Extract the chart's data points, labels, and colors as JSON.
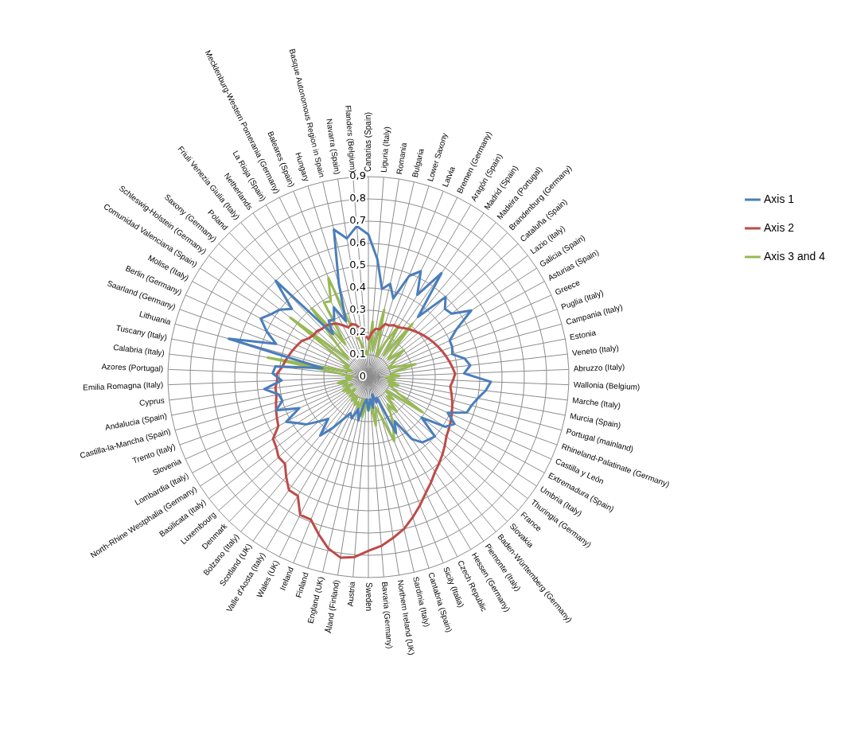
{
  "chart_data": {
    "type": "radar",
    "categories": [
      "Canarias (Spain)",
      "Liguria (Italy)",
      "Romania",
      "Bulgaria",
      "Lower Saxony",
      "Latvia",
      "Bremen (Germany)",
      "Aragón (Spain)",
      "Madrid (Spain)",
      "Madeira (Portugal)",
      "Brandenburg (Germany)",
      "Cataluña (Spain)",
      "Lazio (Italy)",
      "Galicia (Spain)",
      "Asturias (Spain)",
      "Greece",
      "Puglia (Italy)",
      "Campania (Italy)",
      "Estonia",
      "Veneto (Italy)",
      "Abruzzo (Italy)",
      "Wallonia (Belgium)",
      "Marche (Italy)",
      "Murcia (Spain)",
      "Portugal (mainland)",
      "Rhineland-Palatinate (Germany)",
      "Castilla y León",
      "Extremadura (Spain)",
      "Umbria (Italy)",
      "Thuringia (Germany)",
      "France",
      "Slovakia",
      "Baden-Württemberg (Germany)",
      "Piemonte (Italy)",
      "Hessen (Germany)",
      "Czech Republic",
      "Sicily (Italia)",
      "Cantabria (Spain)",
      "Sardinia (Italy)",
      "Northern Ireland (UK)",
      "Bavaria (Germany)",
      "Sweden",
      "Austria",
      "Åland (Finland)",
      "England (UK)",
      "Finland",
      "Ireland",
      "Wales (UK)",
      "Valle d'Aosta (Italy)",
      "Scotland (UK)",
      "Bolzano (Italy)",
      "Denmark",
      "Luxembourg",
      "Basilicata (Italy)",
      "North-Rhine Westphalia (Germany)",
      "Lombardia (Italy)",
      "Slovenia",
      "Trento (Italy)",
      "Castilla-la-Mancha (Spain)",
      "Andalucia (Spain)",
      "Cyprus",
      "Emilia Romagna (Italy)",
      "Azores (Portugal)",
      "Calabria (Italy)",
      "Tuscany (Italy)",
      "Lithuania",
      "Saarland (Germany)",
      "Berlin (Germany)",
      "Molise (Italy)",
      "Comunidad Valenciana (Spain)",
      "Schleswig-Holstein (Germany)",
      "Saxony (Germany)",
      "Poland",
      "Friuli Venezia Giulia (Italy)",
      "Netherlands",
      "La Rioja (Spain)",
      "Mecklenburg-Western Pomerania (Germany)",
      "Baleares (Spain)",
      "Hungary",
      "Basque Autonomous Region in Spain",
      "Navarra (Spain)",
      "Flanders (Belgium)"
    ],
    "series": [
      {
        "name": "Axis 1",
        "color": "#4a7ebb",
        "values": [
          0.64,
          0.53,
          0.4,
          0.43,
          0.37,
          0.49,
          0.53,
          0.43,
          0.57,
          0.35,
          0.5,
          0.46,
          0.47,
          0.55,
          0.45,
          0.4,
          0.4,
          0.39,
          0.44,
          0.46,
          0.43,
          0.55,
          0.53,
          0.5,
          0.48,
          0.47,
          0.39,
          0.44,
          0.41,
          0.3,
          0.4,
          0.39,
          0.38,
          0.34,
          0.23,
          0.28,
          0.1,
          0.12,
          0.08,
          0.14,
          0.1,
          0.15,
          0.1,
          0.12,
          0.2,
          0.15,
          0.2,
          0.18,
          0.22,
          0.28,
          0.34,
          0.26,
          0.3,
          0.35,
          0.38,
          0.42,
          0.34,
          0.44,
          0.4,
          0.41,
          0.47,
          0.39,
          0.43,
          0.42,
          0.21,
          0.65,
          0.44,
          0.5,
          0.55,
          0.52,
          0.5,
          0.46,
          0.6,
          0.25,
          0.31,
          0.3,
          0.35,
          0.27,
          0.44,
          0.68,
          0.63,
          0.68
        ]
      },
      {
        "name": "Axis 2",
        "color": "#be4b48",
        "values": [
          0.17,
          0.2,
          0.22,
          0.22,
          0.25,
          0.25,
          0.26,
          0.26,
          0.27,
          0.28,
          0.29,
          0.3,
          0.31,
          0.32,
          0.33,
          0.34,
          0.35,
          0.36,
          0.37,
          0.38,
          0.39,
          0.38,
          0.37,
          0.38,
          0.39,
          0.4,
          0.41,
          0.42,
          0.43,
          0.44,
          0.46,
          0.48,
          0.5,
          0.52,
          0.55,
          0.58,
          0.62,
          0.66,
          0.7,
          0.73,
          0.76,
          0.78,
          0.81,
          0.82,
          0.79,
          0.74,
          0.69,
          0.69,
          0.62,
          0.62,
          0.58,
          0.54,
          0.54,
          0.52,
          0.51,
          0.46,
          0.45,
          0.44,
          0.43,
          0.42,
          0.42,
          0.41,
          0.41,
          0.39,
          0.38,
          0.37,
          0.36,
          0.35,
          0.34,
          0.32,
          0.31,
          0.31,
          0.3,
          0.3,
          0.29,
          0.28,
          0.26,
          0.24,
          0.25,
          0.24,
          0.22,
          0.19
        ]
      },
      {
        "name": "Axis 3 and 4",
        "color": "#98b954",
        "values": [
          0.12,
          0.25,
          0.12,
          0.31,
          0.15,
          0.1,
          0.18,
          0.27,
          0.12,
          0.31,
          0.15,
          0.12,
          0.2,
          0.14,
          0.12,
          0.1,
          0.14,
          0.22,
          0.12,
          0.1,
          0.14,
          0.08,
          0.12,
          0.09,
          0.14,
          0.1,
          0.12,
          0.15,
          0.29,
          0.1,
          0.15,
          0.12,
          0.2,
          0.15,
          0.2,
          0.25,
          0.31,
          0.18,
          0.14,
          0.22,
          0.12,
          0.15,
          0.12,
          0.18,
          0.1,
          0.16,
          0.12,
          0.14,
          0.1,
          0.13,
          0.1,
          0.12,
          0.08,
          0.12,
          0.1,
          0.13,
          0.08,
          0.12,
          0.1,
          0.14,
          0.08,
          0.1,
          0.07,
          0.12,
          0.46,
          0.1,
          0.08,
          0.12,
          0.1,
          0.15,
          0.44,
          0.12,
          0.2,
          0.4,
          0.18,
          0.39,
          0.38,
          0.48,
          0.2,
          0.17,
          0.12,
          0.1
        ]
      }
    ],
    "ylim": [
      0,
      0.9
    ],
    "yticks": [
      0,
      {
        "value": 0.1,
        "label": "0,1"
      },
      {
        "value": 0.2,
        "label": "0,2"
      },
      {
        "value": 0.3,
        "label": "0,3"
      },
      {
        "value": 0.4,
        "label": "0,4"
      },
      {
        "value": 0.5,
        "label": "0,5"
      },
      {
        "value": 0.6,
        "label": "0,6"
      },
      {
        "value": 0.7,
        "label": "0,7"
      },
      {
        "value": 0.8,
        "label": "0,8"
      },
      {
        "value": 0.9,
        "label": "0,9"
      }
    ],
    "grid": true,
    "legend": "right",
    "marker": "none"
  }
}
